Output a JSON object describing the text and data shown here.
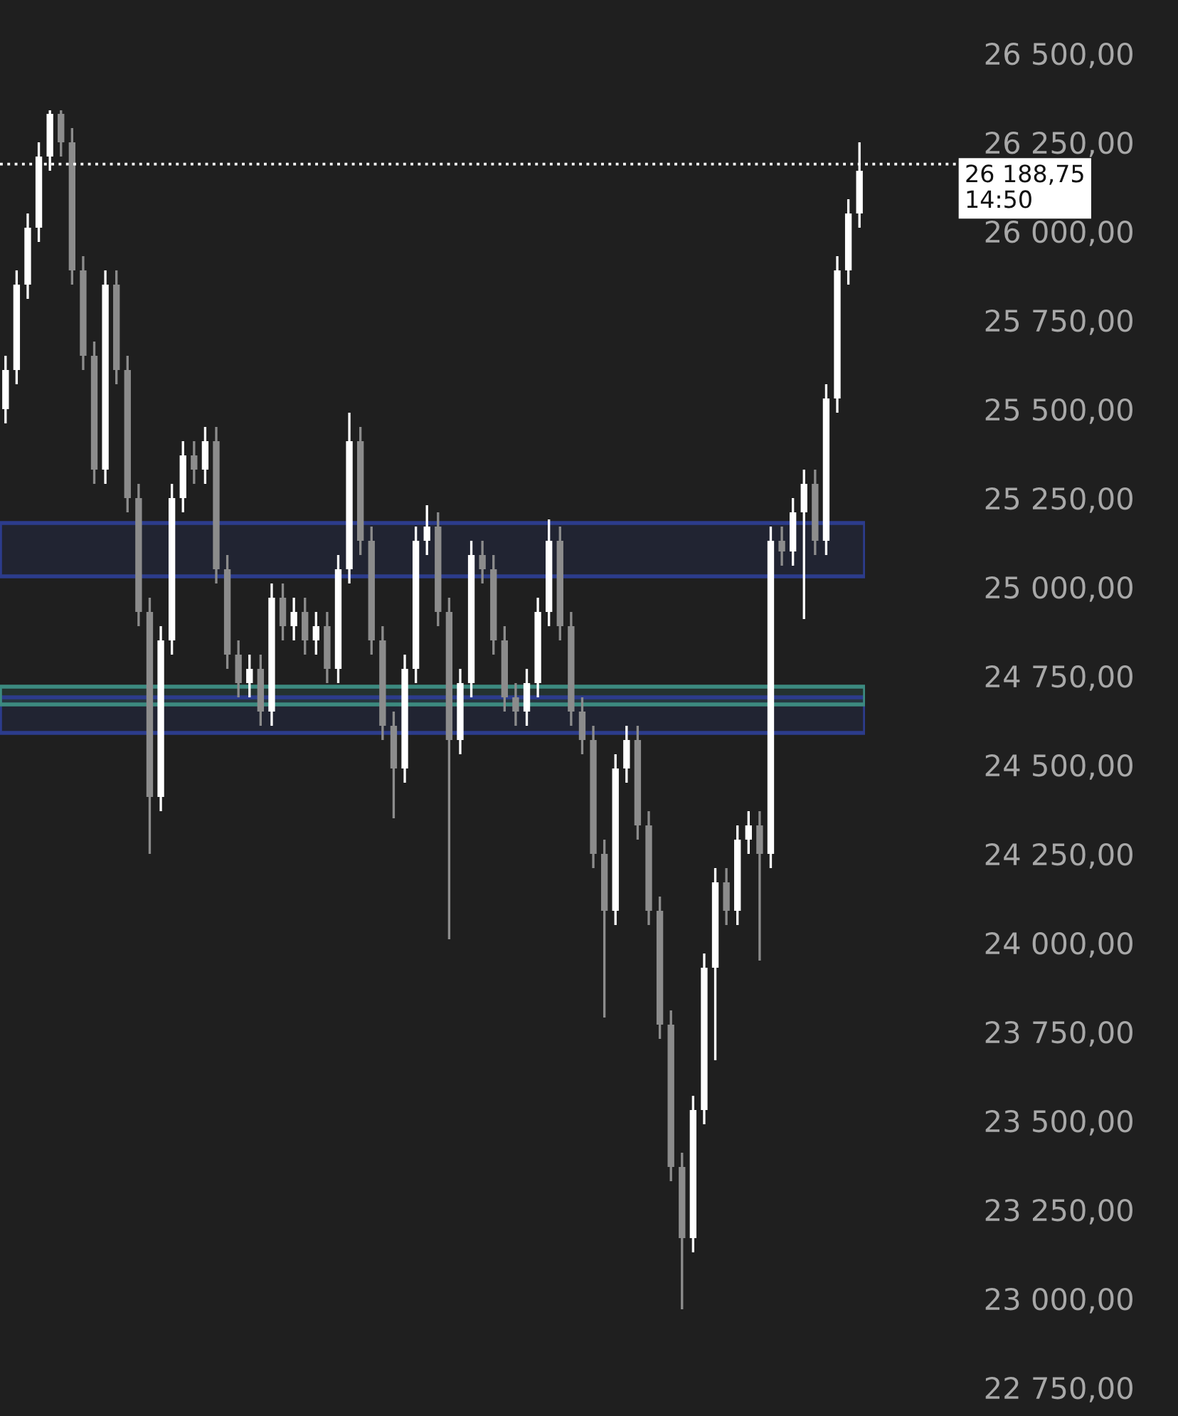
{
  "chart_data": {
    "type": "candlestick",
    "tick_labels": "y",
    "grid": false,
    "legend": false,
    "categories": [
      null,
      null,
      null,
      null,
      null,
      null,
      null,
      null,
      null,
      null,
      null,
      null,
      null,
      null,
      null,
      null,
      null,
      null,
      null,
      null,
      null,
      null,
      null,
      null,
      null,
      null,
      null,
      null,
      null,
      null,
      null,
      null,
      null,
      null,
      null,
      null,
      null,
      null,
      null,
      null,
      null,
      null,
      null,
      null,
      null,
      null,
      null,
      null,
      null,
      null,
      null,
      null,
      null,
      null,
      null,
      null,
      null,
      null,
      null,
      null,
      null,
      null,
      null,
      null,
      null,
      null,
      null,
      null,
      null,
      null,
      null,
      null,
      null,
      null,
      null,
      null,
      null,
      null
    ],
    "ohlc": [
      [
        25500,
        25650,
        25460,
        25610
      ],
      [
        25610,
        25890,
        25570,
        25850
      ],
      [
        25850,
        26050,
        25810,
        26010
      ],
      [
        26010,
        26250,
        25970,
        26210
      ],
      [
        26210,
        26340,
        26170,
        26330
      ],
      [
        26330,
        26340,
        26210,
        26250
      ],
      [
        26250,
        26290,
        25850,
        25890
      ],
      [
        25890,
        25930,
        25610,
        25650
      ],
      [
        25650,
        25690,
        25290,
        25330
      ],
      [
        25330,
        25890,
        25290,
        25850
      ],
      [
        25850,
        25890,
        25570,
        25610
      ],
      [
        25610,
        25650,
        25210,
        25250
      ],
      [
        25250,
        25290,
        24890,
        24930
      ],
      [
        24930,
        24970,
        24250,
        24410
      ],
      [
        24410,
        24890,
        24370,
        24850
      ],
      [
        24850,
        25290,
        24810,
        25250
      ],
      [
        25250,
        25410,
        25210,
        25370
      ],
      [
        25370,
        25410,
        25290,
        25330
      ],
      [
        25330,
        25450,
        25290,
        25410
      ],
      [
        25410,
        25450,
        25010,
        25050
      ],
      [
        25050,
        25090,
        24770,
        24810
      ],
      [
        24810,
        24850,
        24690,
        24730
      ],
      [
        24730,
        24810,
        24690,
        24770
      ],
      [
        24770,
        24810,
        24610,
        24650
      ],
      [
        24650,
        25010,
        24610,
        24970
      ],
      [
        24970,
        25010,
        24850,
        24890
      ],
      [
        24890,
        24970,
        24850,
        24930
      ],
      [
        24930,
        24970,
        24810,
        24850
      ],
      [
        24850,
        24930,
        24810,
        24890
      ],
      [
        24890,
        24930,
        24730,
        24770
      ],
      [
        24770,
        25090,
        24730,
        25050
      ],
      [
        25050,
        25490,
        25010,
        25410
      ],
      [
        25410,
        25450,
        25090,
        25130
      ],
      [
        25130,
        25170,
        24810,
        24850
      ],
      [
        24850,
        24890,
        24570,
        24610
      ],
      [
        24610,
        24650,
        24350,
        24490
      ],
      [
        24490,
        24810,
        24450,
        24770
      ],
      [
        24770,
        25170,
        24730,
        25130
      ],
      [
        25130,
        25230,
        25090,
        25170
      ],
      [
        25170,
        25210,
        24890,
        24930
      ],
      [
        24930,
        24970,
        24010,
        24570
      ],
      [
        24570,
        24770,
        24530,
        24730
      ],
      [
        24730,
        25130,
        24690,
        25090
      ],
      [
        25090,
        25130,
        25010,
        25050
      ],
      [
        25050,
        25090,
        24810,
        24850
      ],
      [
        24850,
        24890,
        24650,
        24690
      ],
      [
        24690,
        24730,
        24610,
        24650
      ],
      [
        24650,
        24770,
        24610,
        24730
      ],
      [
        24730,
        24970,
        24690,
        24930
      ],
      [
        24930,
        25190,
        24890,
        25130
      ],
      [
        25130,
        25170,
        24850,
        24890
      ],
      [
        24890,
        24930,
        24610,
        24650
      ],
      [
        24650,
        24690,
        24530,
        24570
      ],
      [
        24570,
        24610,
        24210,
        24250
      ],
      [
        24250,
        24290,
        23790,
        24090
      ],
      [
        24090,
        24530,
        24050,
        24490
      ],
      [
        24490,
        24610,
        24450,
        24570
      ],
      [
        24570,
        24610,
        24290,
        24330
      ],
      [
        24330,
        24370,
        24050,
        24090
      ],
      [
        24090,
        24130,
        23730,
        23770
      ],
      [
        23770,
        23810,
        23330,
        23370
      ],
      [
        23370,
        23410,
        22970,
        23170
      ],
      [
        23170,
        23570,
        23130,
        23530
      ],
      [
        23530,
        23970,
        23490,
        23930
      ],
      [
        23930,
        24210,
        23670,
        24170
      ],
      [
        24170,
        24210,
        24050,
        24090
      ],
      [
        24090,
        24330,
        24050,
        24290
      ],
      [
        24290,
        24370,
        24250,
        24330
      ],
      [
        24330,
        24370,
        23950,
        24250
      ],
      [
        24250,
        25170,
        24210,
        25130
      ],
      [
        25130,
        25170,
        25060,
        25100
      ],
      [
        25100,
        25250,
        25060,
        25210
      ],
      [
        25210,
        25330,
        24910,
        25290
      ],
      [
        25290,
        25330,
        25090,
        25130
      ],
      [
        25130,
        25570,
        25090,
        25530
      ],
      [
        25530,
        25930,
        25490,
        25890
      ],
      [
        25890,
        26090,
        25850,
        26050
      ],
      [
        26050,
        26250,
        26010,
        26170
      ]
    ],
    "colors": [
      "#ffffff",
      "#ffffff",
      "#ffffff",
      "#ffffff",
      "#ffffff",
      "#8c8c8c",
      "#8c8c8c",
      "#8c8c8c",
      "#8c8c8c",
      "#ffffff",
      "#8c8c8c",
      "#8c8c8c",
      "#8c8c8c",
      "#8c8c8c",
      "#ffffff",
      "#ffffff",
      "#ffffff",
      "#8c8c8c",
      "#ffffff",
      "#8c8c8c",
      "#8c8c8c",
      "#8c8c8c",
      "#ffffff",
      "#8c8c8c",
      "#ffffff",
      "#8c8c8c",
      "#ffffff",
      "#8c8c8c",
      "#ffffff",
      "#8c8c8c",
      "#ffffff",
      "#ffffff",
      "#8c8c8c",
      "#8c8c8c",
      "#8c8c8c",
      "#8c8c8c",
      "#ffffff",
      "#ffffff",
      "#ffffff",
      "#8c8c8c",
      "#8c8c8c",
      "#ffffff",
      "#ffffff",
      "#8c8c8c",
      "#8c8c8c",
      "#8c8c8c",
      "#8c8c8c",
      "#ffffff",
      "#ffffff",
      "#ffffff",
      "#8c8c8c",
      "#8c8c8c",
      "#8c8c8c",
      "#8c8c8c",
      "#8c8c8c",
      "#ffffff",
      "#ffffff",
      "#8c8c8c",
      "#8c8c8c",
      "#8c8c8c",
      "#8c8c8c",
      "#8c8c8c",
      "#ffffff",
      "#ffffff",
      "#ffffff",
      "#8c8c8c",
      "#ffffff",
      "#ffffff",
      "#8c8c8c",
      "#ffffff",
      "#8c8c8c",
      "#ffffff",
      "#ffffff",
      "#8c8c8c",
      "#ffffff",
      "#ffffff",
      "#ffffff",
      "#ffffff"
    ],
    "ylim": [
      22670,
      26650
    ],
    "yticks": [
      {
        "value": 22750,
        "label": "22 750,00"
      },
      {
        "value": 23000,
        "label": "23 000,00"
      },
      {
        "value": 23250,
        "label": "23 250,00"
      },
      {
        "value": 23500,
        "label": "23 500,00"
      },
      {
        "value": 23750,
        "label": "23 750,00"
      },
      {
        "value": 24000,
        "label": "24 000,00"
      },
      {
        "value": 24250,
        "label": "24 250,00"
      },
      {
        "value": 24500,
        "label": "24 500,00"
      },
      {
        "value": 24750,
        "label": "24 750,00"
      },
      {
        "value": 25000,
        "label": "25 000,00"
      },
      {
        "value": 25250,
        "label": "25 250,00"
      },
      {
        "value": 25500,
        "label": "25 500,00"
      },
      {
        "value": 25750,
        "label": "25 750,00"
      },
      {
        "value": 26000,
        "label": "26 000,00"
      },
      {
        "value": 26250,
        "label": "26 250,00"
      },
      {
        "value": 26500,
        "label": "26 500,00"
      }
    ],
    "bands": [
      {
        "axis": "y",
        "from": 25030,
        "to": 25180,
        "color": "#2c3c8c"
      },
      {
        "axis": "y",
        "from": 24590,
        "to": 24690,
        "color": "#2c3c8c"
      },
      {
        "axis": "y",
        "from": 24670,
        "to": 24720,
        "color": "#3c8a80"
      }
    ],
    "ref_lines": [
      {
        "axis": "y",
        "value": 26188.75,
        "label": "26 188,75\n14:50",
        "color": "#ffffff",
        "line_style": "dotted"
      }
    ]
  }
}
